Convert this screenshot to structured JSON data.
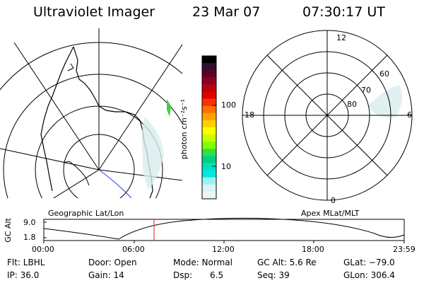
{
  "header": {
    "instrument": "Ultraviolet Imager",
    "date": "23 Mar 07",
    "time": "07:30:17 UT"
  },
  "colorbar": {
    "unit_label": "photon cm⁻²s⁻¹",
    "ticks": [
      "100",
      "10"
    ],
    "colors": [
      "#000000",
      "#301030",
      "#600020",
      "#8a0020",
      "#b80010",
      "#e00000",
      "#ff3000",
      "#ff7000",
      "#ffa000",
      "#ffd000",
      "#ffff00",
      "#c8ff00",
      "#80ff00",
      "#30e040",
      "#00d080",
      "#00e0c0",
      "#00e8e0",
      "#a0f0f0",
      "#d8f4f4",
      "#eaf6f6"
    ]
  },
  "polar_plot": {
    "mlt_labels": {
      "top": "12",
      "left": "18",
      "right": "6",
      "bottom": "0"
    },
    "mlat_labels": [
      "60",
      "70",
      "80"
    ]
  },
  "map_labels": {
    "left": "Geographic Lat/Lon",
    "right": "Apex MLat/MLT"
  },
  "altitude_plot": {
    "ylabel": "GC Alt",
    "y_ticks": [
      "9.0",
      "1.8"
    ],
    "x_ticks": [
      "00:00",
      "06:00",
      "12:00",
      "18:00",
      "23:59"
    ],
    "current_time_marker": "07:30"
  },
  "footer": {
    "filter": "Flt: LBHL",
    "ip": "IP: 36.0",
    "door": "Door: Open",
    "gain": "Gain: 14",
    "mode": "Mode: Normal",
    "dsp": "Dsp:",
    "dsp_value": "6.5",
    "gc_alt": "GC Alt: 5.6 Re",
    "seq": "Seq: 39",
    "glat": "GLat: −79.0",
    "glon": "GLon: 306.4"
  }
}
